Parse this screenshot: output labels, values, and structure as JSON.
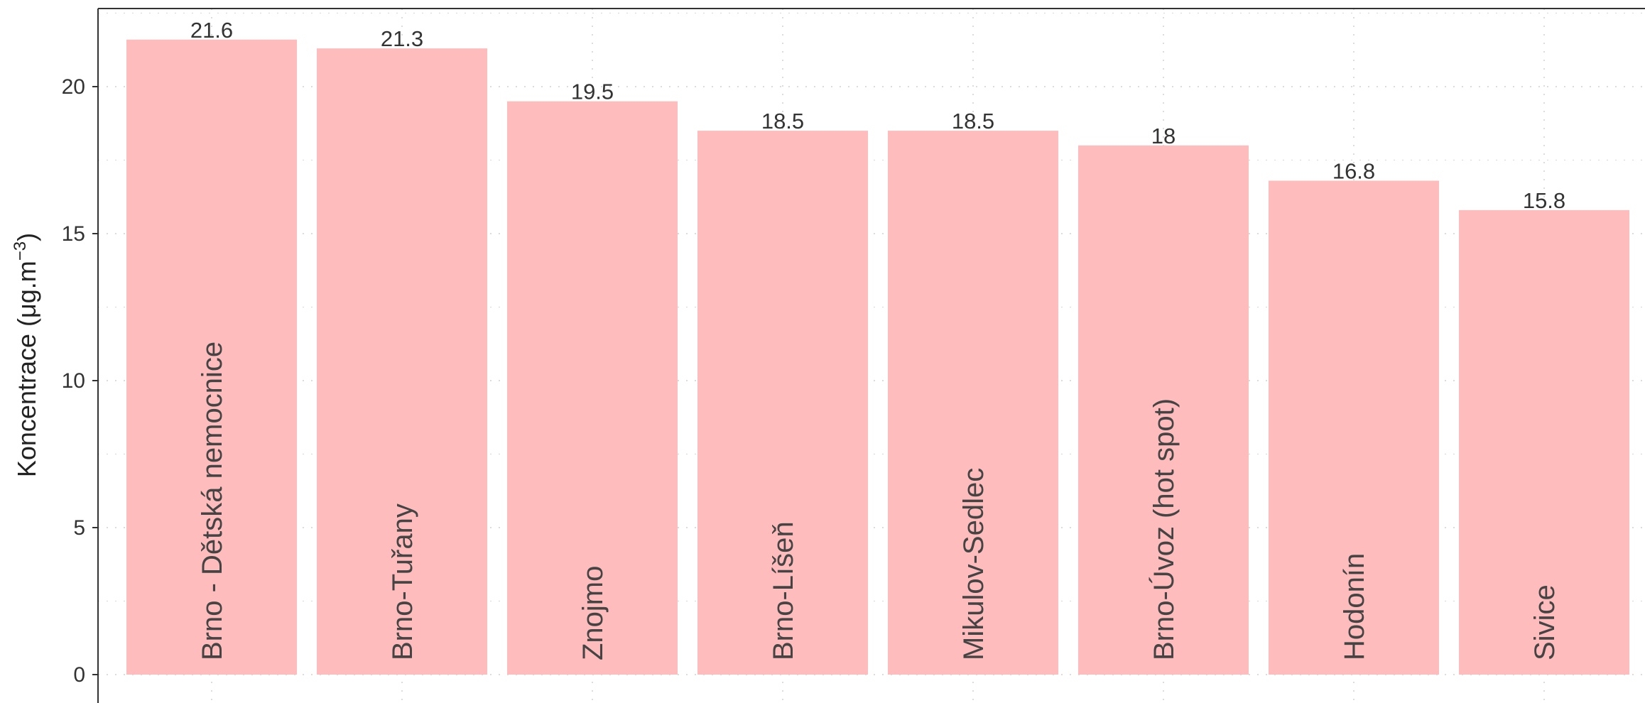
{
  "chart_data": {
    "type": "bar",
    "orientation": "vertical",
    "categories": [
      "Brno - Dětská nemocnice",
      "Brno-Tuřany",
      "Znojmo",
      "Brno-Líšeň",
      "Mikulov-Sedlec",
      "Brno-Úvoz (hot spot)",
      "Hodonín",
      "Sivice"
    ],
    "values": [
      21.6,
      21.3,
      19.5,
      18.5,
      18.5,
      18,
      16.8,
      15.8
    ],
    "data_labels": [
      "21.6",
      "21.3",
      "19.5",
      "18.5",
      "18.5",
      "18",
      "16.8",
      "15.8"
    ],
    "ylabel": "Koncentrace (μg.m",
    "ylabel_superscript": "−3",
    "ylabel_suffix": ")",
    "yticks": [
      0,
      5,
      10,
      15,
      20
    ],
    "ytick_labels": [
      "0",
      "5",
      "10",
      "15",
      "20"
    ],
    "ylim": [
      -0.8,
      22.8
    ],
    "grid": true,
    "grid_style": "dotted",
    "category_labels_position": "inside-bar-rotated",
    "colors": {
      "bar": "#ffbcbc",
      "grid": "#dcdcdc",
      "axis": "#333333",
      "text": "#333333"
    }
  }
}
